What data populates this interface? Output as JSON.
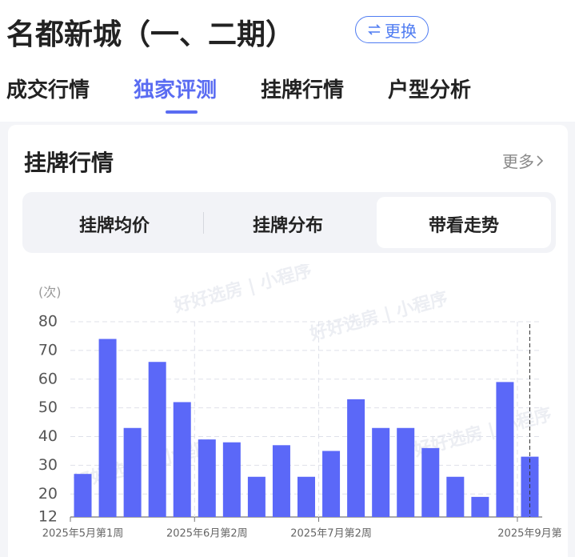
{
  "header": {
    "title": "名都新城（一、二期）",
    "switch_button": "更换"
  },
  "tabs": [
    "成交行情",
    "独家评测",
    "挂牌行情",
    "户型分析"
  ],
  "card": {
    "title": "挂牌行情",
    "more": "更多",
    "segments": [
      "挂牌均价",
      "挂牌分布",
      "带看走势"
    ]
  },
  "chart_data": {
    "type": "bar",
    "y_unit": "(次)",
    "watermark": "好好选房 | 小程序",
    "categories": [
      "2025年5月第1周",
      null,
      null,
      null,
      null,
      "2025年6月第2周",
      null,
      null,
      null,
      null,
      "2025年7月第2周",
      null,
      null,
      null,
      null,
      null,
      null,
      null,
      "2025年9月第"
    ],
    "values": [
      27,
      74,
      43,
      66,
      52,
      39,
      38,
      26,
      37,
      26,
      35,
      53,
      43,
      43,
      36,
      26,
      19,
      59,
      33
    ],
    "color": "#5b68f8",
    "ylim": [
      12,
      80
    ],
    "yticks": [
      12,
      20,
      30,
      40,
      50,
      60,
      70,
      80
    ],
    "grid": true
  }
}
